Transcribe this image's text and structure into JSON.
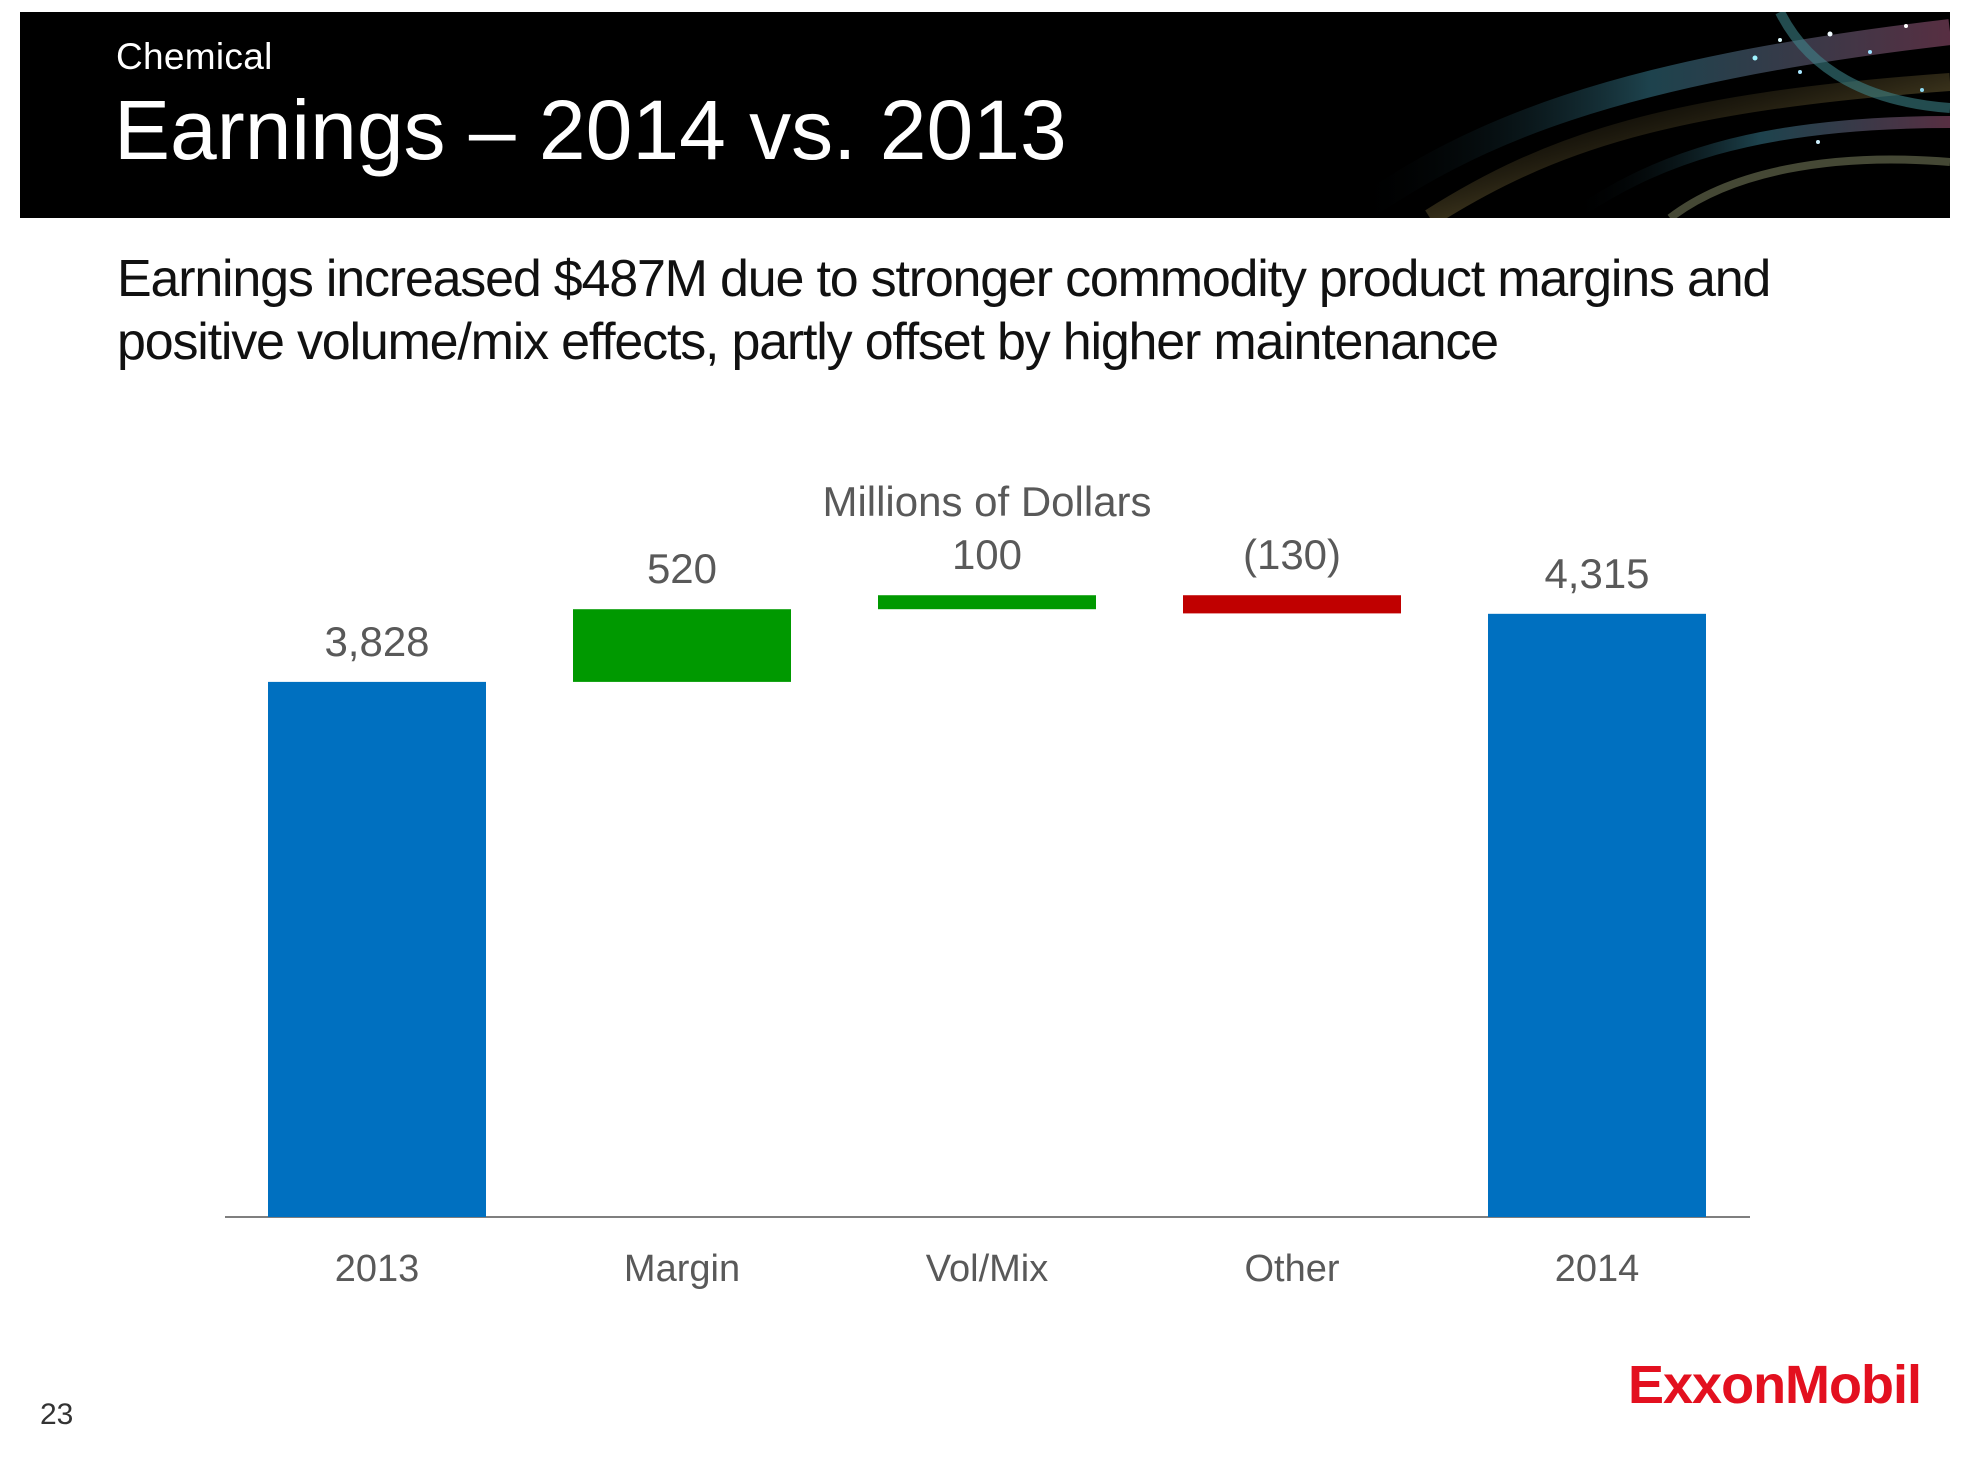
{
  "header": {
    "section": "Chemical",
    "title": "Earnings – 2014 vs. 2013"
  },
  "headline": {
    "line1": "Earnings increased $487M due to stronger commodity product margins and",
    "line2": "positive volume/mix effects, partly offset by higher maintenance"
  },
  "chart_data": {
    "type": "bar",
    "subtype": "waterfall",
    "title": "Millions of Dollars",
    "categories": [
      "2013",
      "Margin",
      "Vol/Mix",
      "Other",
      "2014"
    ],
    "values": [
      3828,
      520,
      100,
      -130,
      4315
    ],
    "data_labels": [
      "3,828",
      "520",
      "100",
      "(130)",
      "4,315"
    ],
    "kinds": [
      "total",
      "change",
      "change",
      "change",
      "total"
    ],
    "ylim": [
      0,
      4700
    ],
    "grid": false,
    "legend": "none",
    "colors": {
      "total": "#0070c0",
      "increase": "#009900",
      "decrease": "#c00000",
      "axis": "#7f7f7f",
      "labels": "#595959"
    }
  },
  "footer": {
    "page_number": "23",
    "logo_text": "ExxonMobil"
  }
}
